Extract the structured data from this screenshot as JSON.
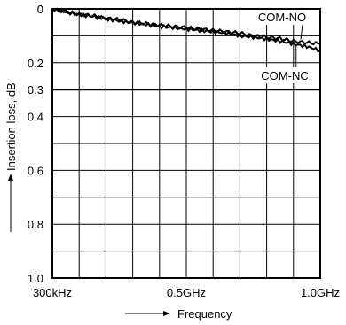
{
  "chart_data": {
    "type": "line",
    "title": "",
    "xlabel": "Frequency",
    "ylabel": "Insertion loss, dB",
    "x_tick_labels": [
      "300kHz",
      "0.5GHz",
      "1.0GHz"
    ],
    "x_tick_values": [
      0.0003,
      0.5,
      1.0
    ],
    "x_unit": "GHz",
    "xlim": [
      0.0003,
      1.0
    ],
    "y_tick_labels": [
      "0",
      "0.2",
      "0.3",
      "0.4",
      "0.6",
      "0.8",
      "1.0"
    ],
    "y_tick_values": [
      0,
      0.2,
      0.3,
      0.4,
      0.6,
      0.8,
      1.0
    ],
    "ylim": [
      0,
      1.0
    ],
    "y_inverted": true,
    "grid": true,
    "x_grid_divisions": 10,
    "y_grid_divisions": 10,
    "emphasized_gridline_y": 0.3,
    "legend": "inline labels at right end",
    "series": [
      {
        "name": "COM-NO",
        "color": "#000000",
        "x": [
          0.0003,
          0.05,
          0.1,
          0.15,
          0.2,
          0.25,
          0.3,
          0.35,
          0.4,
          0.45,
          0.5,
          0.55,
          0.6,
          0.65,
          0.7,
          0.75,
          0.8,
          0.85,
          0.9,
          0.95,
          1.0
        ],
        "y": [
          0.0,
          0.01,
          0.02,
          0.025,
          0.035,
          0.04,
          0.05,
          0.055,
          0.06,
          0.065,
          0.07,
          0.075,
          0.08,
          0.085,
          0.09,
          0.1,
          0.105,
          0.11,
          0.12,
          0.125,
          0.13
        ]
      },
      {
        "name": "COM-NC",
        "color": "#000000",
        "x": [
          0.0003,
          0.05,
          0.1,
          0.15,
          0.2,
          0.25,
          0.3,
          0.35,
          0.4,
          0.45,
          0.5,
          0.55,
          0.6,
          0.65,
          0.7,
          0.75,
          0.8,
          0.85,
          0.9,
          0.95,
          1.0
        ],
        "y": [
          0.0,
          0.012,
          0.022,
          0.028,
          0.038,
          0.045,
          0.052,
          0.058,
          0.065,
          0.07,
          0.075,
          0.08,
          0.085,
          0.09,
          0.1,
          0.105,
          0.112,
          0.12,
          0.13,
          0.14,
          0.155
        ]
      }
    ]
  }
}
